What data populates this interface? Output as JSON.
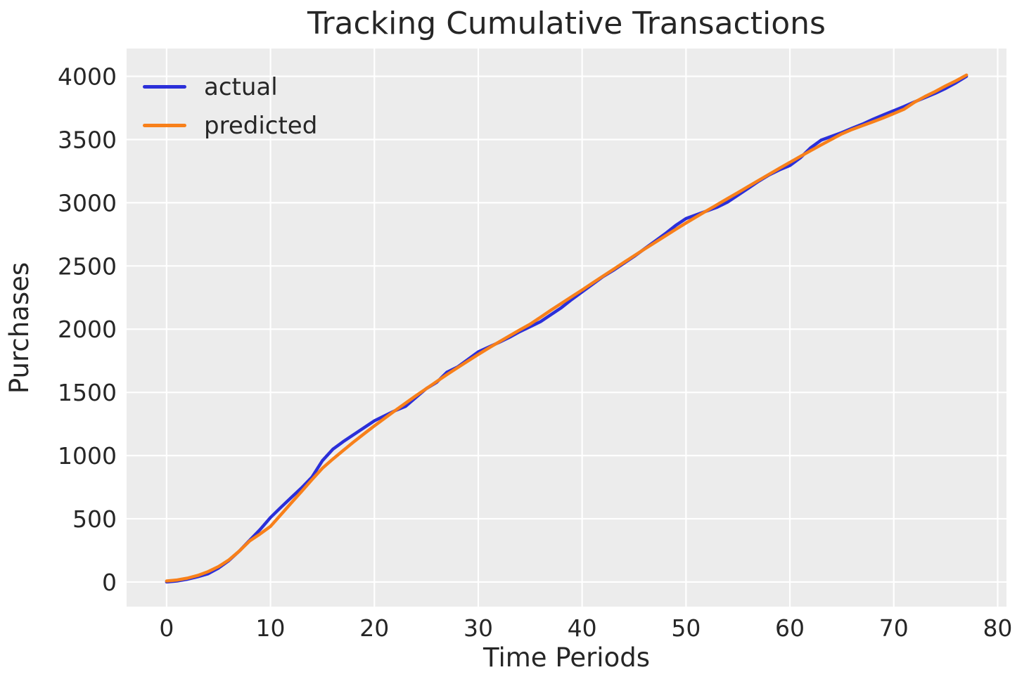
{
  "figure": {
    "background": "#ffffff",
    "plot_background": "#ececec",
    "grid_color": "#ffffff",
    "text_color": "#262626"
  },
  "chart_data": {
    "type": "line",
    "title": "Tracking Cumulative Transactions",
    "xlabel": "Time Periods",
    "ylabel": "Purchases",
    "xlim": [
      -3.85,
      80.85
    ],
    "ylim": [
      -195,
      4220
    ],
    "xticks": [
      0,
      10,
      20,
      30,
      40,
      50,
      60,
      70,
      80
    ],
    "yticks": [
      0,
      500,
      1000,
      1500,
      2000,
      2500,
      3000,
      3500,
      4000
    ],
    "grid": true,
    "legend_position": "upper left",
    "x": [
      0,
      1,
      2,
      3,
      4,
      5,
      6,
      7,
      8,
      9,
      10,
      11,
      12,
      13,
      14,
      15,
      16,
      17,
      18,
      19,
      20,
      21,
      22,
      23,
      24,
      25,
      26,
      27,
      28,
      29,
      30,
      31,
      32,
      33,
      34,
      35,
      36,
      37,
      38,
      39,
      40,
      41,
      42,
      43,
      44,
      45,
      46,
      47,
      48,
      49,
      50,
      51,
      52,
      53,
      54,
      55,
      56,
      57,
      58,
      59,
      60,
      61,
      62,
      63,
      64,
      65,
      66,
      67,
      68,
      69,
      70,
      71,
      72,
      73,
      74,
      75,
      76,
      77
    ],
    "series": [
      {
        "name": "actual",
        "color": "#2b2fd9",
        "values": [
          0,
          8,
          22,
          42,
          65,
          110,
          170,
          245,
          330,
          415,
          510,
          590,
          668,
          745,
          830,
          960,
          1050,
          1110,
          1165,
          1220,
          1275,
          1315,
          1355,
          1390,
          1460,
          1530,
          1580,
          1660,
          1700,
          1760,
          1820,
          1858,
          1895,
          1935,
          1980,
          2020,
          2060,
          2115,
          2170,
          2235,
          2295,
          2355,
          2415,
          2465,
          2520,
          2575,
          2635,
          2695,
          2755,
          2820,
          2875,
          2905,
          2935,
          2965,
          3005,
          3060,
          3115,
          3170,
          3220,
          3260,
          3295,
          3355,
          3435,
          3495,
          3525,
          3555,
          3590,
          3622,
          3660,
          3695,
          3728,
          3762,
          3798,
          3832,
          3866,
          3905,
          3950,
          4000
        ]
      },
      {
        "name": "predicted",
        "color": "#f8801a",
        "values": [
          8,
          16,
          30,
          52,
          82,
          122,
          175,
          245,
          325,
          380,
          440,
          532,
          625,
          717,
          810,
          900,
          972,
          1040,
          1107,
          1172,
          1235,
          1296,
          1356,
          1415,
          1473,
          1530,
          1586,
          1641,
          1695,
          1748,
          1800,
          1850,
          1899,
          1947,
          1994,
          2040,
          2095,
          2150,
          2204,
          2257,
          2310,
          2365,
          2419,
          2473,
          2527,
          2580,
          2633,
          2685,
          2737,
          2789,
          2840,
          2889,
          2937,
          2985,
          3033,
          3080,
          3129,
          3177,
          3225,
          3273,
          3320,
          3366,
          3412,
          3457,
          3501,
          3545,
          3580,
          3610,
          3640,
          3672,
          3705,
          3740,
          3795,
          3840,
          3880,
          3925,
          3965,
          4010
        ]
      }
    ]
  }
}
